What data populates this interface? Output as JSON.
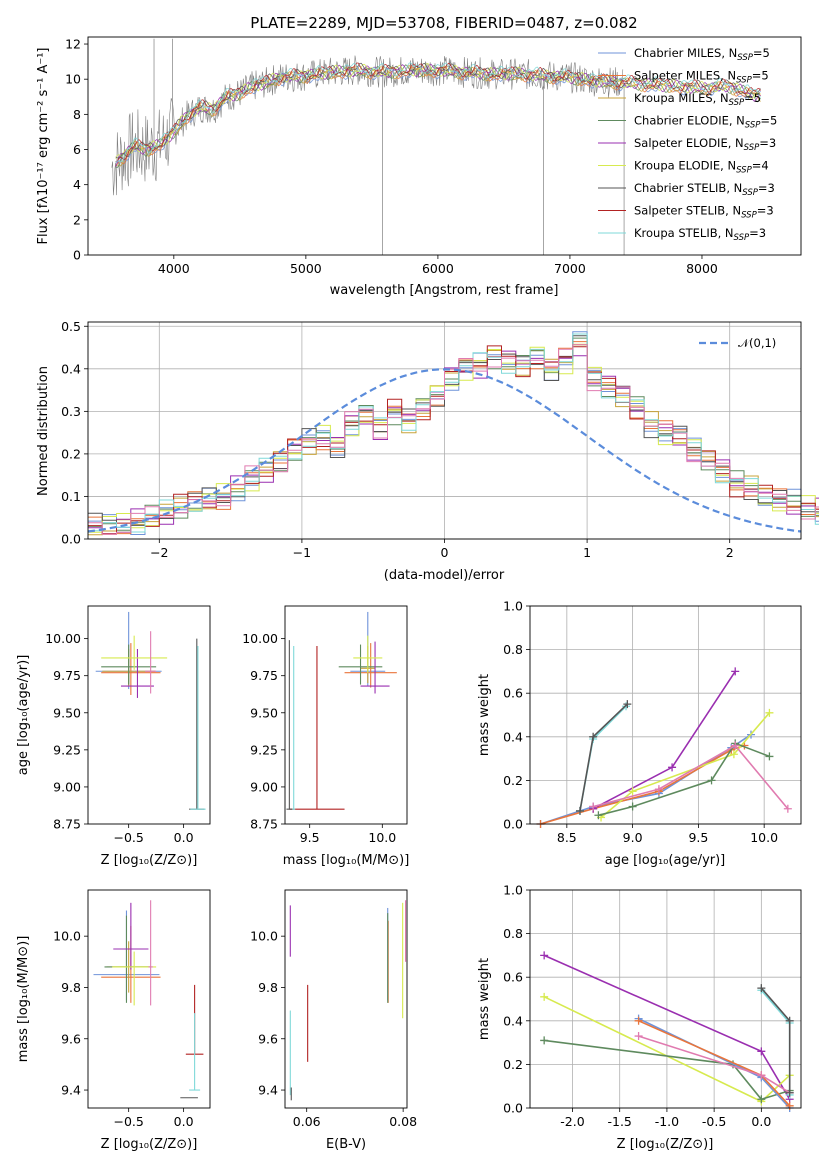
{
  "figure": {
    "title": "PLATE=2289, MJD=53708, FIBERID=0487, z=0.082"
  },
  "colors": {
    "Chabrier MILES": "#6f93d9",
    "Salpeter MILES": "#e9753b",
    "Kroupa MILES": "#c8a33a",
    "Chabrier ELODIE": "#5e8a5e",
    "Salpeter ELODIE": "#9a2fb0",
    "Kroupa ELODIE": "#d7ea4f",
    "Chabrier STELIB": "#555555",
    "Salpeter STELIB": "#b22222",
    "Kroupa STELIB": "#7fd9d9",
    "data": "#808080",
    "gaussian": "#5b8cdb",
    "pink": "#e07bb0"
  },
  "chart_data": [
    {
      "id": "spectrum",
      "type": "line",
      "title": "PLATE=2289, MJD=53708, FIBERID=0487, z=0.082",
      "xlabel": "wavelength [Angstrom, rest frame]",
      "ylabel": "Flux [fλ10⁻¹⁷ erg cm⁻² s⁻¹ A⁻¹]",
      "xlim": [
        3350,
        8750
      ],
      "ylim": [
        0,
        12.4
      ],
      "xticks": [
        4000,
        5000,
        6000,
        7000,
        8000
      ],
      "yticks": [
        0,
        2,
        4,
        6,
        8,
        10,
        12
      ],
      "legend": [
        "Chabrier MILES, N_SSP=5",
        "Salpeter MILES, N_SSP=5",
        "Kroupa MILES, N_SSP=5",
        "Chabrier ELODIE, N_SSP=5",
        "Salpeter ELODIE, N_SSP=3",
        "Kroupa ELODIE, N_SSP=4",
        "Chabrier STELIB, N_SSP=3",
        "Salpeter STELIB, N_SSP=3",
        "Kroupa STELIB, N_SSP=3"
      ],
      "legend_placement": "right",
      "continuum": {
        "x": [
          3500,
          3600,
          3700,
          3800,
          3900,
          4000,
          4100,
          4200,
          4300,
          4400,
          4500,
          4600,
          4700,
          4800,
          5000,
          5200,
          5400,
          5600,
          5800,
          6000,
          6200,
          6400,
          6600,
          6800,
          7000,
          7200,
          7400,
          7600,
          7800,
          8000,
          8200,
          8400
        ],
        "y": [
          4.8,
          5.5,
          6.2,
          6.0,
          6.3,
          7.0,
          7.9,
          8.4,
          8.3,
          9.0,
          9.2,
          9.6,
          9.8,
          10.1,
          10.2,
          10.4,
          10.5,
          10.4,
          10.5,
          10.5,
          10.4,
          10.3,
          10.3,
          10.2,
          10.1,
          9.9,
          9.8,
          9.7,
          9.6,
          9.5,
          9.6,
          9.1
        ]
      },
      "data_end": 7400,
      "model_end": 8450
    },
    {
      "id": "residuals",
      "type": "bar",
      "xlabel": "(data-model)/error",
      "ylabel": "Normed distribution",
      "xlim": [
        -2.5,
        2.5
      ],
      "ylim": [
        0,
        0.51
      ],
      "xticks": [
        -2,
        -1,
        0,
        1,
        2
      ],
      "yticks": [
        0.0,
        0.1,
        0.2,
        0.3,
        0.4,
        0.5
      ],
      "bins_start": -2.5,
      "bin_width": 0.1,
      "base_values": [
        0.03,
        0.03,
        0.035,
        0.04,
        0.05,
        0.06,
        0.075,
        0.085,
        0.095,
        0.1,
        0.12,
        0.14,
        0.16,
        0.18,
        0.21,
        0.23,
        0.24,
        0.22,
        0.27,
        0.29,
        0.26,
        0.3,
        0.28,
        0.31,
        0.34,
        0.38,
        0.4,
        0.41,
        0.43,
        0.42,
        0.41,
        0.43,
        0.4,
        0.42,
        0.46,
        0.38,
        0.36,
        0.34,
        0.31,
        0.27,
        0.25,
        0.24,
        0.21,
        0.19,
        0.16,
        0.13,
        0.12,
        0.1,
        0.09,
        0.085,
        0.075,
        0.065,
        0.055,
        0.05,
        0.045,
        0.04,
        0.035,
        0.03,
        0.03,
        0.03
      ],
      "gaussian_label": "𝒩(0,1)",
      "legend_placement": "top-right"
    },
    {
      "id": "age-vs-Z",
      "type": "scatter",
      "xlabel": "Z [log₁₀(Z/Z⊙)]",
      "ylabel": "age  [log₁₀(age/yr)]",
      "xlim": [
        -0.87,
        0.24
      ],
      "ylim": [
        8.75,
        10.22
      ],
      "xticks": [
        -0.5,
        0.0
      ],
      "yticks": [
        8.75,
        9.0,
        9.25,
        9.5,
        9.75,
        10.0
      ]
    },
    {
      "id": "age-vs-mass",
      "type": "scatter",
      "xlabel": "mass [log₁₀(M/M⊙)]",
      "ylabel": "",
      "xlim": [
        9.33,
        10.17
      ],
      "ylim": [
        8.75,
        10.22
      ],
      "xticks": [
        9.5,
        10.0
      ],
      "yticks": [
        8.75,
        9.0,
        9.25,
        9.5,
        9.75,
        10.0
      ]
    },
    {
      "id": "mw-vs-age",
      "type": "line",
      "xlabel": "age  [log₁₀(age/yr)]",
      "ylabel": "mass weight",
      "xlim": [
        8.22,
        10.28
      ],
      "ylim": [
        0,
        1.0
      ],
      "xticks": [
        8.5,
        9.0,
        9.5,
        10.0
      ],
      "yticks": [
        0.0,
        0.2,
        0.4,
        0.6,
        0.8,
        1.0
      ],
      "series": [
        {
          "key": "Chabrier MILES",
          "x": [
            8.3,
            8.7,
            9.2,
            9.75,
            9.9
          ],
          "y": [
            0.0,
            0.08,
            0.14,
            0.35,
            0.41
          ]
        },
        {
          "key": "Salpeter MILES",
          "x": [
            8.3,
            8.7,
            9.2,
            9.75,
            9.85
          ],
          "y": [
            0.0,
            0.07,
            0.15,
            0.34,
            0.36
          ]
        },
        {
          "key": "Salpeter ELODIE",
          "x": [
            8.7,
            9.3,
            9.78
          ],
          "y": [
            0.07,
            0.26,
            0.7
          ]
        },
        {
          "key": "Kroupa ELODIE",
          "x": [
            8.76,
            9.0,
            9.77,
            10.04
          ],
          "y": [
            0.03,
            0.15,
            0.32,
            0.51
          ]
        },
        {
          "key": "Chabrier ELODIE",
          "x": [
            8.74,
            9.0,
            9.6,
            9.78,
            10.04
          ],
          "y": [
            0.04,
            0.08,
            0.2,
            0.37,
            0.31
          ]
        },
        {
          "key": "pink",
          "x": [
            8.7,
            9.2,
            9.78,
            10.18
          ],
          "y": [
            0.08,
            0.16,
            0.36,
            0.07
          ]
        },
        {
          "key": "Kroupa STELIB",
          "x": [
            8.6,
            8.7,
            8.95
          ],
          "y": [
            0.06,
            0.39,
            0.54
          ]
        },
        {
          "key": "Chabrier STELIB",
          "x": [
            8.6,
            8.7,
            8.96
          ],
          "y": [
            0.06,
            0.4,
            0.55
          ]
        }
      ]
    },
    {
      "id": "mass-vs-Z",
      "type": "scatter",
      "xlabel": "Z [log₁₀(Z/Z⊙)]",
      "ylabel": "mass [log₁₀(M/M⊙)]",
      "xlim": [
        -0.87,
        0.24
      ],
      "ylim": [
        9.33,
        10.18
      ],
      "xticks": [
        -0.5,
        0.0
      ],
      "yticks": [
        9.4,
        9.6,
        9.8,
        10.0
      ]
    },
    {
      "id": "mass-vs-ebv",
      "type": "scatter",
      "xlabel": "E(B-V)",
      "ylabel": "",
      "xlim": [
        0.0555,
        0.0808
      ],
      "ylim": [
        9.33,
        10.18
      ],
      "xticks": [
        0.06,
        0.08
      ],
      "yticks": [
        9.4,
        9.6,
        9.8,
        10.0
      ]
    },
    {
      "id": "mw-vs-Z",
      "type": "line",
      "xlabel": "Z [log₁₀(Z/Z⊙)]",
      "ylabel": "mass weight",
      "xlim": [
        -2.45,
        0.42
      ],
      "ylim": [
        0,
        1.0
      ],
      "xticks": [
        -2.0,
        -1.5,
        -1.0,
        -0.5,
        0.0
      ],
      "yticks": [
        0.0,
        0.2,
        0.4,
        0.6,
        0.8,
        1.0
      ],
      "series": [
        {
          "key": "Salpeter ELODIE",
          "x": [
            -2.3,
            0.0,
            0.3
          ],
          "y": [
            0.7,
            0.26,
            0.04
          ]
        },
        {
          "key": "Kroupa ELODIE",
          "x": [
            -2.3,
            0.0,
            0.3
          ],
          "y": [
            0.51,
            0.03,
            0.15
          ]
        },
        {
          "key": "Chabrier ELODIE",
          "x": [
            -2.3,
            -0.3,
            0.0,
            0.3
          ],
          "y": [
            0.31,
            0.2,
            0.04,
            0.08
          ]
        },
        {
          "key": "Chabrier MILES",
          "x": [
            -1.3,
            0.0,
            0.3
          ],
          "y": [
            0.41,
            0.14,
            0.0
          ]
        },
        {
          "key": "Salpeter MILES",
          "x": [
            -1.3,
            0.0,
            0.3
          ],
          "y": [
            0.4,
            0.15,
            0.01
          ]
        },
        {
          "key": "pink",
          "x": [
            -1.3,
            0.0,
            0.3
          ],
          "y": [
            0.33,
            0.15,
            0.07
          ]
        },
        {
          "key": "Kroupa STELIB",
          "x": [
            0.0,
            0.3,
            0.3
          ],
          "y": [
            0.54,
            0.39,
            0.06
          ]
        },
        {
          "key": "Chabrier STELIB",
          "x": [
            0.0,
            0.3,
            0.3
          ],
          "y": [
            0.55,
            0.4,
            0.07
          ]
        }
      ]
    }
  ]
}
